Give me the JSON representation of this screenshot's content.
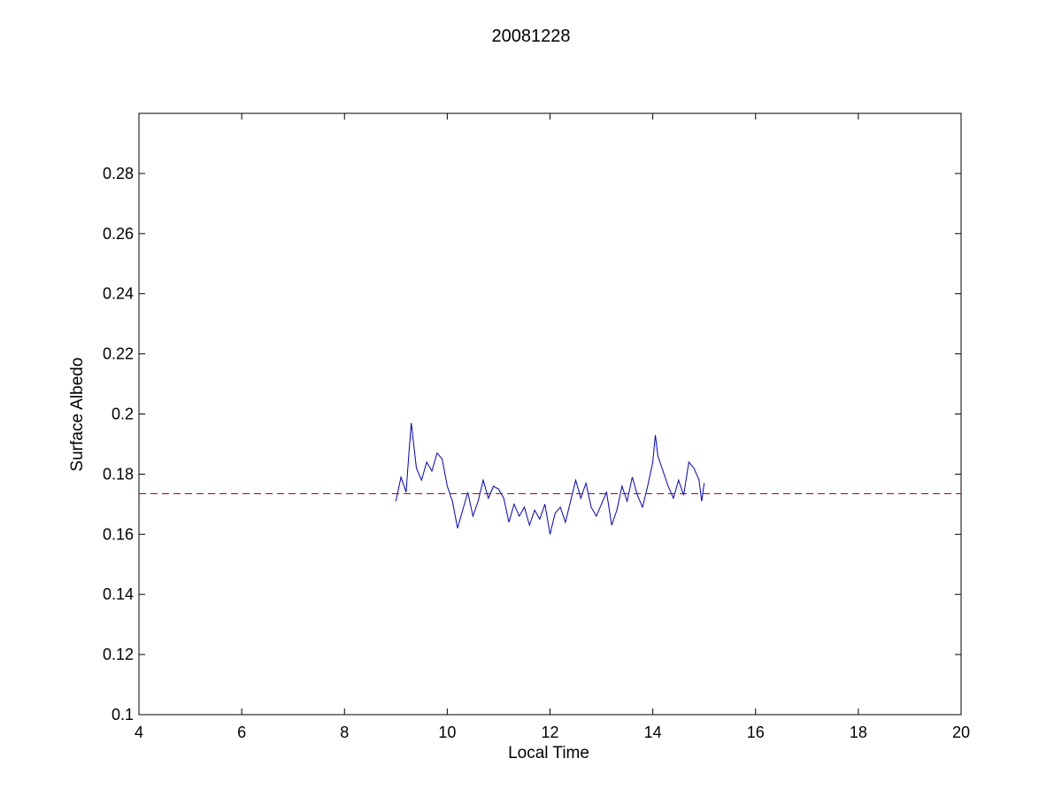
{
  "chart_data": {
    "type": "line",
    "title": "20081228",
    "xlabel": "Local Time",
    "ylabel": "Surface Albedo",
    "xlim": [
      4,
      20
    ],
    "ylim": [
      0.1,
      0.3
    ],
    "xticks": [
      "4",
      "6",
      "8",
      "10",
      "12",
      "14",
      "16",
      "18",
      "20"
    ],
    "yticks": [
      "0.1",
      "0.12",
      "0.14",
      "0.16",
      "0.18",
      "0.2",
      "0.22",
      "0.24",
      "0.26",
      "0.28"
    ],
    "grid": false,
    "series": [
      {
        "color": "#0000c0",
        "style": "solid",
        "x": [
          9.0,
          9.1,
          9.2,
          9.25,
          9.3,
          9.4,
          9.5,
          9.6,
          9.7,
          9.8,
          9.9,
          10.0,
          10.1,
          10.2,
          10.3,
          10.4,
          10.5,
          10.6,
          10.7,
          10.8,
          10.9,
          11.0,
          11.1,
          11.2,
          11.3,
          11.4,
          11.5,
          11.6,
          11.7,
          11.8,
          11.9,
          12.0,
          12.1,
          12.2,
          12.3,
          12.4,
          12.5,
          12.6,
          12.7,
          12.8,
          12.9,
          13.0,
          13.1,
          13.2,
          13.3,
          13.4,
          13.5,
          13.6,
          13.7,
          13.8,
          13.9,
          14.0,
          14.05,
          14.1,
          14.2,
          14.3,
          14.4,
          14.5,
          14.6,
          14.7,
          14.8,
          14.9,
          14.95,
          15.0
        ],
        "values": [
          0.171,
          0.179,
          0.174,
          0.186,
          0.197,
          0.182,
          0.178,
          0.184,
          0.181,
          0.187,
          0.185,
          0.176,
          0.171,
          0.162,
          0.168,
          0.174,
          0.166,
          0.171,
          0.178,
          0.172,
          0.176,
          0.175,
          0.172,
          0.164,
          0.17,
          0.166,
          0.169,
          0.163,
          0.168,
          0.165,
          0.17,
          0.16,
          0.167,
          0.169,
          0.164,
          0.171,
          0.178,
          0.172,
          0.177,
          0.169,
          0.166,
          0.17,
          0.174,
          0.163,
          0.168,
          0.176,
          0.171,
          0.179,
          0.173,
          0.169,
          0.176,
          0.184,
          0.193,
          0.186,
          0.181,
          0.176,
          0.172,
          0.178,
          0.173,
          0.184,
          0.182,
          0.178,
          0.171,
          0.177
        ]
      },
      {
        "color": "#c00000",
        "style": "dashed",
        "x": [
          4,
          20
        ],
        "values": [
          0.1735,
          0.1735
        ]
      }
    ]
  }
}
